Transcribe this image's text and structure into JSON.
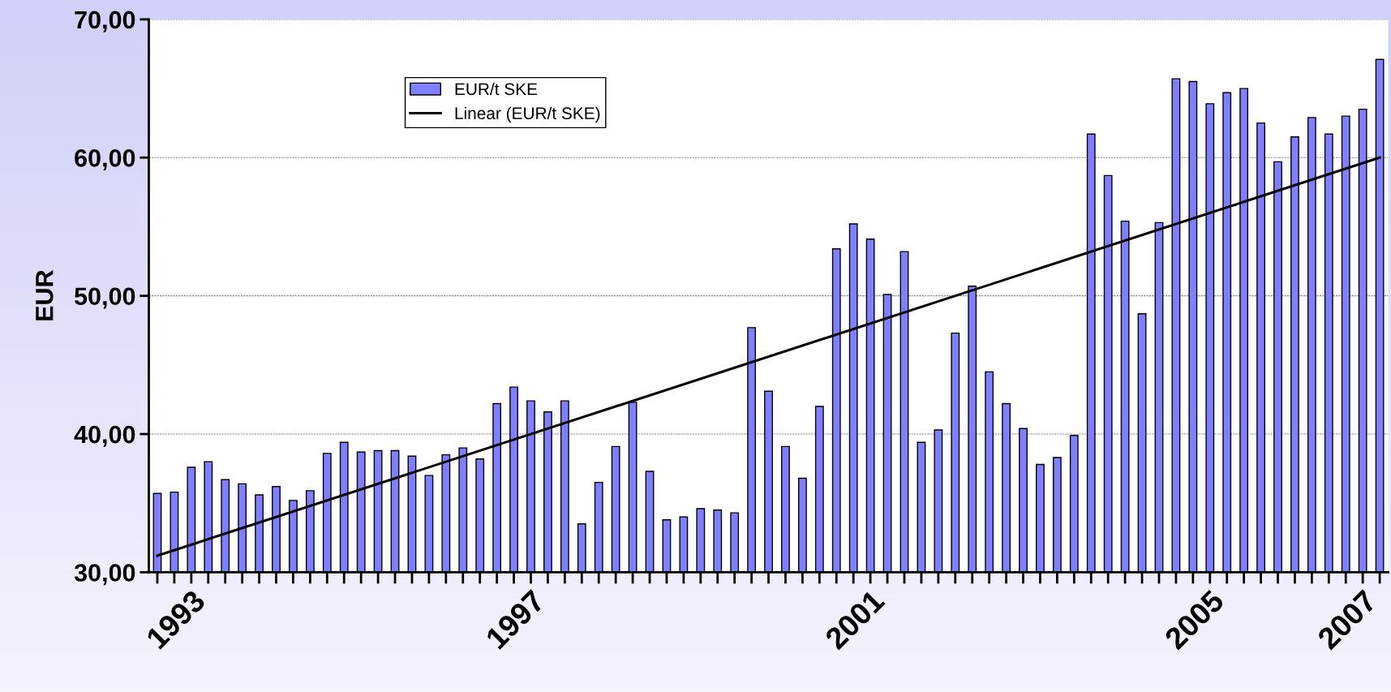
{
  "chart_data": {
    "type": "bar",
    "ylabel": "EUR",
    "categories": [
      null,
      null,
      "1993",
      null,
      null,
      null,
      null,
      null,
      null,
      null,
      null,
      null,
      null,
      null,
      null,
      null,
      null,
      null,
      null,
      null,
      null,
      null,
      "1997",
      null,
      null,
      null,
      null,
      null,
      null,
      null,
      null,
      null,
      null,
      null,
      null,
      null,
      null,
      null,
      null,
      null,
      null,
      null,
      "2001",
      null,
      null,
      null,
      null,
      null,
      null,
      null,
      null,
      null,
      null,
      null,
      null,
      null,
      null,
      null,
      null,
      null,
      null,
      null,
      "2005",
      null,
      null,
      null,
      null,
      null,
      null,
      null,
      null,
      "2007",
      null
    ],
    "series": [
      {
        "name": "EUR/t SKE",
        "color": "#8080ff",
        "values": [
          35.7,
          35.8,
          37.6,
          38.0,
          36.7,
          36.4,
          35.6,
          36.2,
          35.2,
          35.9,
          38.6,
          39.4,
          38.7,
          38.8,
          38.8,
          38.4,
          37.0,
          38.5,
          39.0,
          38.2,
          42.2,
          43.4,
          42.4,
          41.6,
          42.4,
          33.5,
          36.5,
          39.1,
          42.3,
          37.3,
          33.8,
          34.0,
          34.6,
          34.5,
          34.3,
          47.7,
          43.1,
          39.1,
          36.8,
          42.0,
          53.4,
          55.2,
          54.1,
          50.1,
          53.2,
          39.4,
          40.3,
          47.3,
          50.7,
          44.5,
          42.2,
          40.4,
          37.8,
          38.3,
          39.9,
          61.7,
          58.7,
          55.4,
          48.7,
          55.3,
          65.7,
          65.5,
          63.9,
          64.7,
          65.0,
          62.5,
          59.7,
          61.5,
          62.9,
          61.7,
          63.0,
          63.5,
          67.1
        ]
      },
      {
        "name": "Linear (EUR/t SKE)",
        "type": "line",
        "color": "#000000",
        "values": [
          31.2,
          null,
          null,
          null,
          null,
          null,
          null,
          null,
          null,
          null,
          null,
          null,
          null,
          null,
          null,
          null,
          null,
          null,
          null,
          null,
          null,
          null,
          null,
          null,
          null,
          null,
          null,
          null,
          null,
          null,
          null,
          null,
          null,
          null,
          null,
          null,
          null,
          null,
          null,
          null,
          null,
          null,
          null,
          null,
          null,
          null,
          null,
          null,
          null,
          null,
          null,
          null,
          null,
          null,
          null,
          null,
          null,
          null,
          null,
          null,
          null,
          null,
          null,
          null,
          null,
          null,
          null,
          null,
          null,
          null,
          null,
          null,
          60.0
        ]
      }
    ],
    "ylim": [
      30,
      70
    ],
    "yticks": [
      {
        "value": 30,
        "label": "30,00"
      },
      {
        "value": 40,
        "label": "40,00"
      },
      {
        "value": 50,
        "label": "50,00"
      },
      {
        "value": 60,
        "label": "60,00"
      },
      {
        "value": 70,
        "label": "70,00"
      }
    ],
    "grid": "y",
    "legend": "top left"
  }
}
